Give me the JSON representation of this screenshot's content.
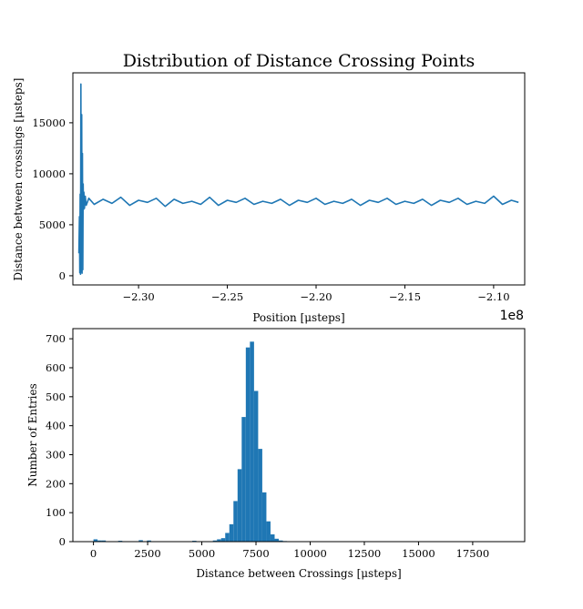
{
  "chart_data": [
    {
      "type": "line",
      "title": "Distribution of Distance Crossing Points",
      "xlabel": "Position [μsteps]",
      "ylabel": "Distance between crossings [μsteps]",
      "x_offset_label": "1e8",
      "xlim": [
        -2.337,
        -2.0825
      ],
      "ylim": [
        -900,
        19900
      ],
      "x_ticks": [
        -2.3,
        -2.25,
        -2.2,
        -2.15,
        -2.1
      ],
      "x_tick_labels": [
        "−2.30",
        "−2.25",
        "−2.20",
        "−2.15",
        "−2.10"
      ],
      "y_ticks": [
        0,
        5000,
        10000,
        15000
      ],
      "y_tick_labels": [
        "0",
        "5000",
        "10000",
        "15000"
      ],
      "color": "#1f77b4",
      "grid": false,
      "series": [
        {
          "x": [
            -2.3336,
            -2.3333,
            -2.3331,
            -2.3329,
            -2.3327,
            -2.3325,
            -2.3323,
            -2.332,
            -2.3318,
            -2.3316,
            -2.3314,
            -2.3312,
            -2.331,
            -2.3308,
            -2.3305,
            -2.33,
            -2.3295,
            -2.328,
            -2.325,
            -2.32,
            -2.315,
            -2.31,
            -2.305,
            -2.3,
            -2.295,
            -2.29,
            -2.285,
            -2.28,
            -2.275,
            -2.27,
            -2.265,
            -2.26,
            -2.255,
            -2.25,
            -2.245,
            -2.24,
            -2.235,
            -2.23,
            -2.225,
            -2.22,
            -2.215,
            -2.21,
            -2.205,
            -2.2,
            -2.195,
            -2.19,
            -2.185,
            -2.18,
            -2.175,
            -2.17,
            -2.165,
            -2.16,
            -2.155,
            -2.15,
            -2.145,
            -2.14,
            -2.135,
            -2.13,
            -2.125,
            -2.12,
            -2.115,
            -2.11,
            -2.105,
            -2.1,
            -2.095,
            -2.09,
            -2.086
          ],
          "y": [
            2200,
            5800,
            300,
            8000,
            150,
            18800,
            400,
            15800,
            250,
            12000,
            600,
            9000,
            6500,
            8200,
            6600,
            7800,
            6900,
            7600,
            7000,
            7500,
            7100,
            7700,
            6900,
            7400,
            7200,
            7600,
            6800,
            7500,
            7100,
            7300,
            7000,
            7700,
            6900,
            7400,
            7200,
            7600,
            7000,
            7300,
            7100,
            7500,
            6900,
            7400,
            7200,
            7600,
            7000,
            7300,
            7100,
            7500,
            6900,
            7400,
            7200,
            7600,
            7000,
            7300,
            7100,
            7500,
            6900,
            7400,
            7200,
            7600,
            7000,
            7300,
            7100,
            7800,
            7000,
            7400,
            7200
          ]
        }
      ]
    },
    {
      "type": "bar",
      "title": "",
      "xlabel": "Distance between Crossings [μsteps]",
      "ylabel": "Number of Entries",
      "xlim": [
        -950,
        19900
      ],
      "ylim": [
        0,
        735
      ],
      "x_ticks": [
        0,
        2500,
        5000,
        7500,
        10000,
        12500,
        15000,
        17500
      ],
      "x_tick_labels": [
        "0",
        "2500",
        "5000",
        "7500",
        "10000",
        "12500",
        "15000",
        "17500"
      ],
      "y_ticks": [
        0,
        100,
        200,
        300,
        400,
        500,
        600,
        700
      ],
      "y_tick_labels": [
        "0",
        "100",
        "200",
        "300",
        "400",
        "500",
        "600",
        "700"
      ],
      "color": "#1f77b4",
      "grid": false,
      "bin_width": 190,
      "bin_starts": [
        0,
        190,
        380,
        1140,
        2090,
        2470,
        4560,
        5510,
        5700,
        5890,
        6080,
        6270,
        6460,
        6650,
        6840,
        7030,
        7220,
        7410,
        7600,
        7790,
        7980,
        8170,
        8360,
        8550,
        8740
      ],
      "values": [
        8,
        4,
        4,
        3,
        5,
        4,
        3,
        4,
        8,
        12,
        30,
        60,
        140,
        250,
        430,
        670,
        690,
        520,
        320,
        170,
        70,
        25,
        10,
        4,
        2
      ]
    }
  ]
}
